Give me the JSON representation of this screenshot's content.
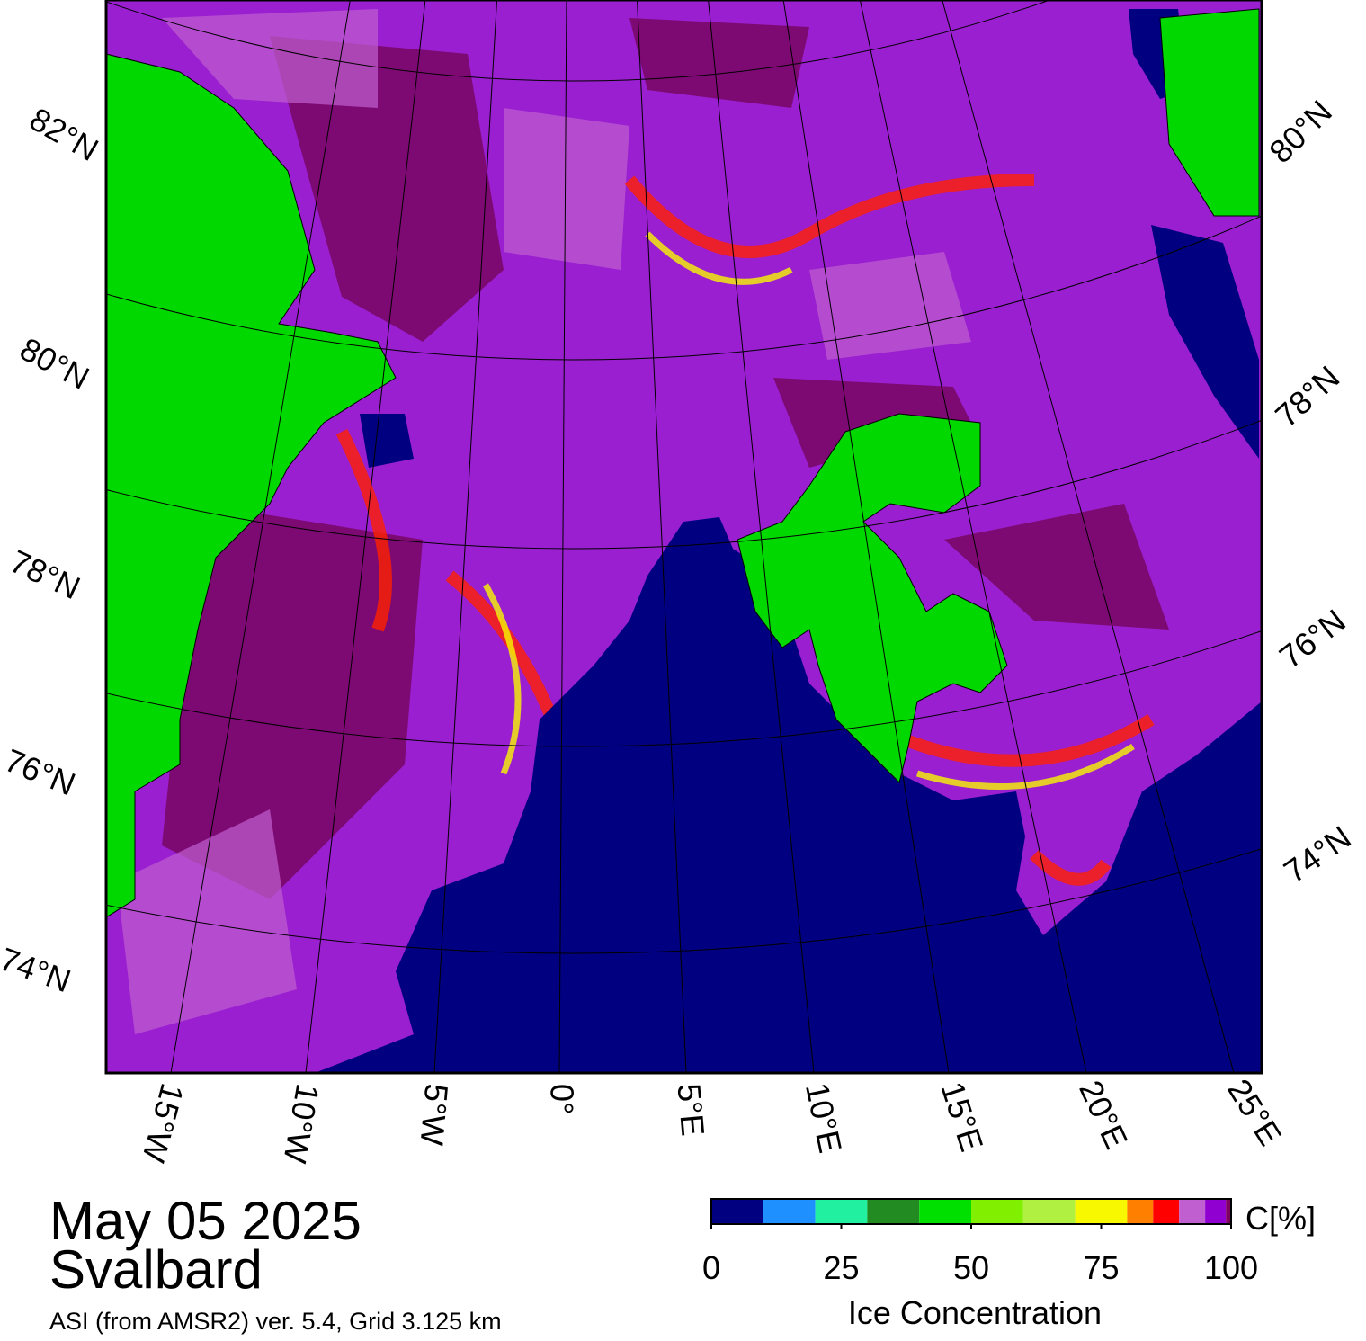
{
  "map": {
    "title": "May 05 2025",
    "region": "Svalbard",
    "subtitle": "ASI (from AMSR2) ver. 5.4,  Grid 3.125 km",
    "lat_labels_left": [
      "82°N",
      "80°N",
      "78°N",
      "76°N",
      "74°N"
    ],
    "lat_labels_right": [
      "80°N",
      "78°N",
      "76°N",
      "74°N"
    ],
    "lon_labels": [
      "15°W",
      "10°W",
      "5°W",
      "0°",
      "5°E",
      "10°E",
      "15°E",
      "20°E",
      "25°E"
    ]
  },
  "colorbar": {
    "bounds": [
      0,
      10,
      20,
      30,
      40,
      50,
      60,
      70,
      80,
      85,
      90,
      95,
      99,
      100
    ],
    "colors": [
      "#000080",
      "#1e90ff",
      "#20f0a0",
      "#228b22",
      "#00e000",
      "#80f000",
      "#b0f040",
      "#f8f800",
      "#ff8000",
      "#ff0000",
      "#c060d0",
      "#9000d0",
      "#800060"
    ],
    "ticks": [
      0,
      25,
      50,
      75,
      100
    ],
    "unit": "C[%]",
    "label": "Ice Concentration"
  }
}
